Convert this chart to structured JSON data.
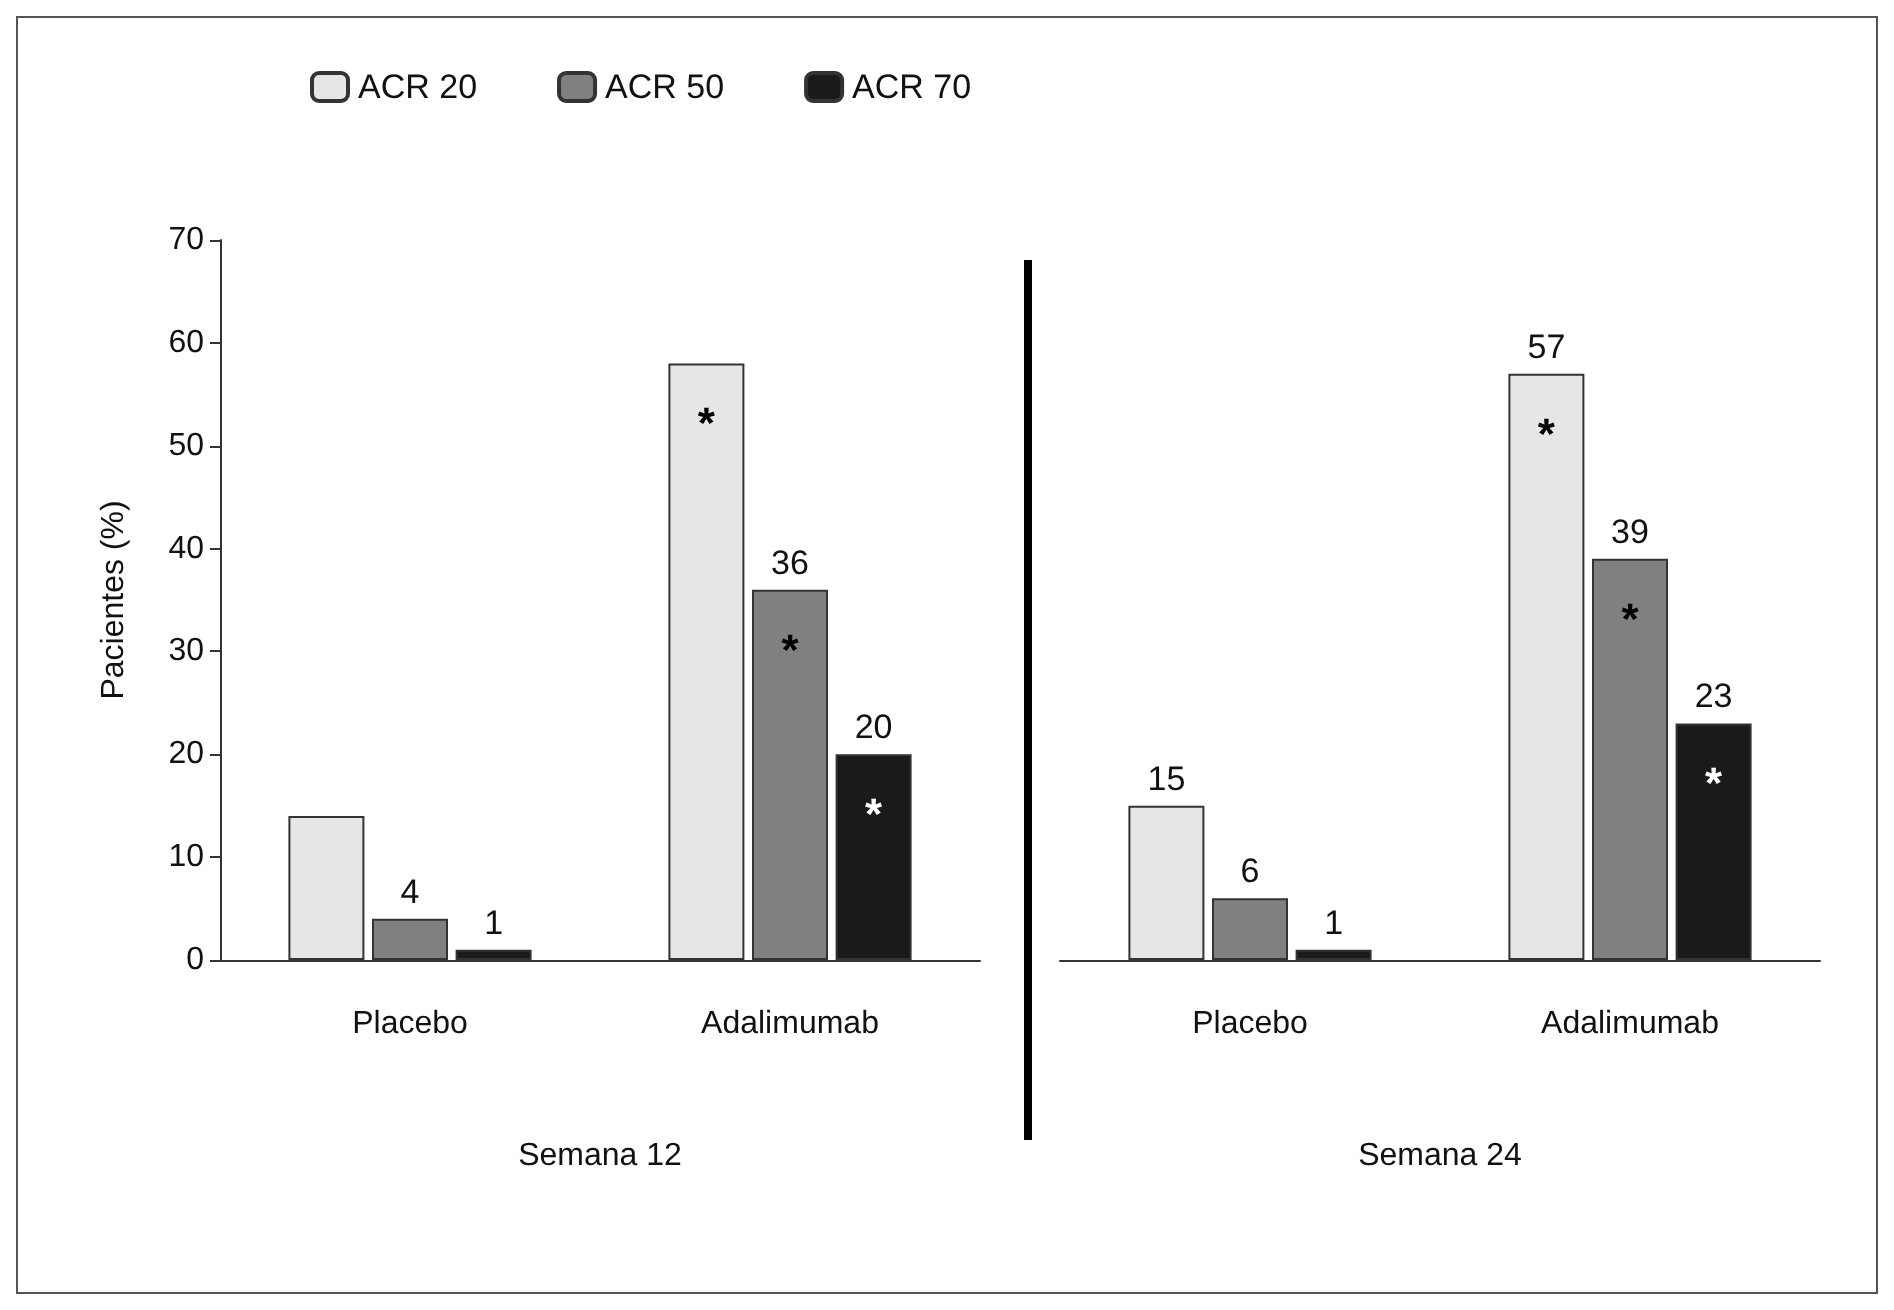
{
  "chart_data": [
    {
      "type": "bar",
      "categories": [
        "Placebo",
        "Adalimumab"
      ],
      "xlabel": "Semana 12",
      "ylabel": "Pacientes (%)",
      "ylim": [
        0,
        70
      ],
      "yticks": [
        0,
        10,
        20,
        30,
        40,
        50,
        60,
        70
      ],
      "legend": "top",
      "grid": false,
      "series": [
        {
          "name": "ACR 20",
          "color": "#e6e6e6",
          "values": [
            14,
            58
          ],
          "value_labels": [
            null,
            null
          ]
        },
        {
          "name": "ACR 50",
          "color": "#808080",
          "values": [
            4,
            36
          ],
          "value_labels": [
            "4",
            "36"
          ]
        },
        {
          "name": "ACR 70",
          "color": "#1a1a1a",
          "values": [
            1,
            20
          ],
          "value_labels": [
            "1",
            "20"
          ]
        }
      ],
      "annotations": [
        "*",
        "*",
        "*"
      ]
    },
    {
      "type": "bar",
      "categories": [
        "Placebo",
        "Adalimumab"
      ],
      "xlabel": "Semana 24",
      "ylim": [
        0,
        70
      ],
      "tick_labels": "x",
      "grid": false,
      "series": [
        {
          "color": "#e6e6e6",
          "values": [
            15,
            57
          ],
          "value_labels": [
            "15",
            "57"
          ]
        },
        {
          "color": "#808080",
          "values": [
            6,
            39
          ],
          "value_labels": [
            "6",
            "39"
          ]
        },
        {
          "color": "#1a1a1a",
          "values": [
            1,
            23
          ],
          "value_labels": [
            "1",
            "23"
          ]
        }
      ],
      "annotations": [
        "*",
        "*",
        "*"
      ]
    }
  ]
}
